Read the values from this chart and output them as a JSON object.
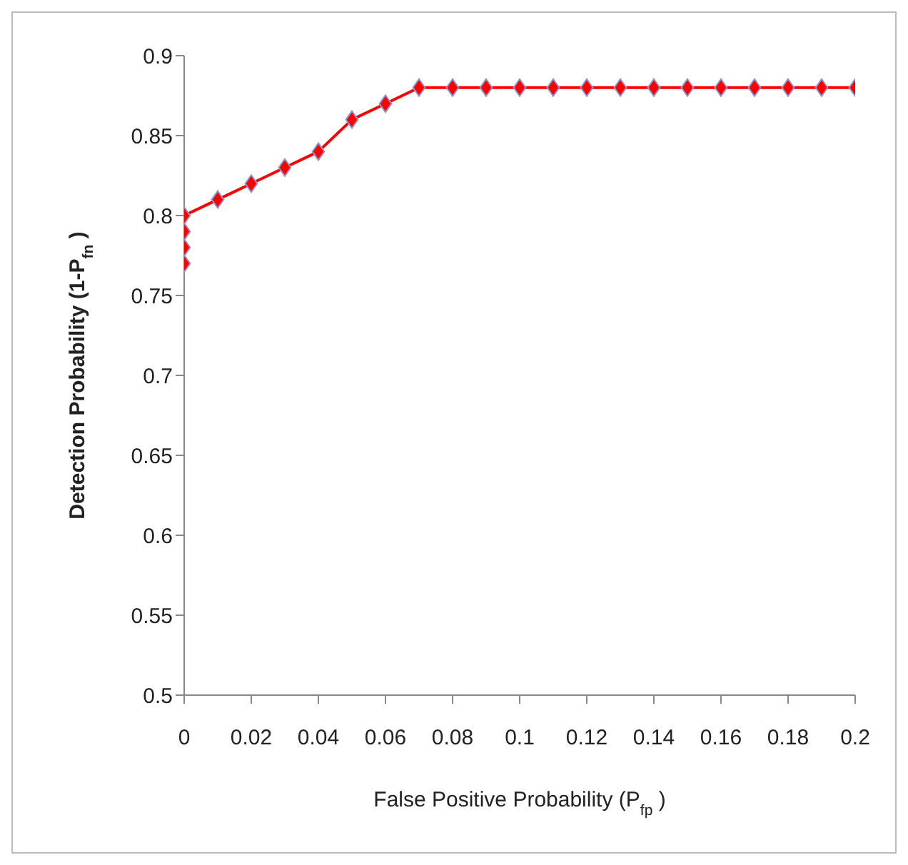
{
  "chart_data": {
    "type": "line",
    "xlabel": "False Positive Probability (P$_{fp}$ )",
    "ylabel": "Detection Probability  (1-P$_{fn}$ )",
    "x": [
      0,
      0,
      0,
      0,
      0.01,
      0.02,
      0.03,
      0.04,
      0.05,
      0.06,
      0.07,
      0.08,
      0.09,
      0.1,
      0.11,
      0.12,
      0.13,
      0.14,
      0.15,
      0.16,
      0.17,
      0.18,
      0.19,
      0.2
    ],
    "series": [
      {
        "color": "#ff0000",
        "values": [
          0.77,
          0.78,
          0.79,
          0.8,
          0.81,
          0.82,
          0.83,
          0.84,
          0.86,
          0.87,
          0.88,
          0.88,
          0.88,
          0.88,
          0.88,
          0.88,
          0.88,
          0.88,
          0.88,
          0.88,
          0.88,
          0.88,
          0.88,
          0.88
        ]
      }
    ],
    "xlim": [
      0,
      0.2
    ],
    "xticks": [
      0,
      0.02,
      0.04,
      0.06,
      0.08,
      0.1,
      0.12,
      0.14,
      0.16,
      0.18,
      0.2
    ],
    "ylim": [
      0.5,
      0.9
    ],
    "yticks": [
      0.5,
      0.55,
      0.6,
      0.65,
      0.7,
      0.75,
      0.8,
      0.85,
      0.9
    ],
    "grid": false,
    "legend": false,
    "marker": "diamond",
    "line_style": "solid"
  }
}
